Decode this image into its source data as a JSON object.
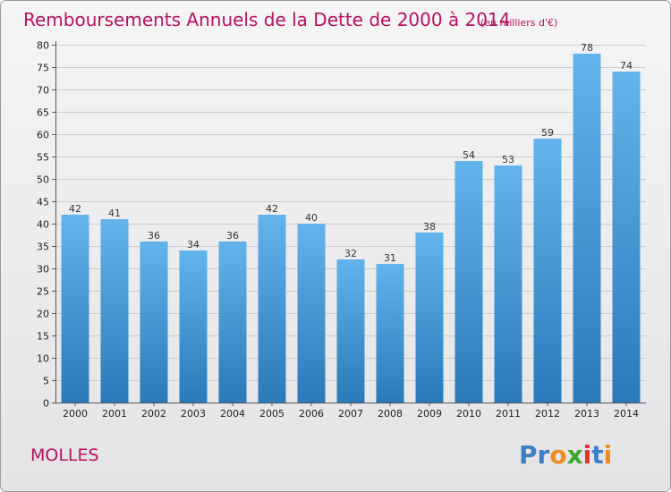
{
  "chart_data": {
    "type": "bar",
    "title": "Remboursements Annuels de la Dette de 2000 à 2014",
    "subtitle": "(en milliers d'€)",
    "categories": [
      "2000",
      "2001",
      "2002",
      "2003",
      "2004",
      "2005",
      "2006",
      "2007",
      "2008",
      "2009",
      "2010",
      "2011",
      "2012",
      "2013",
      "2014"
    ],
    "values": [
      42,
      41,
      36,
      34,
      36,
      42,
      40,
      32,
      31,
      38,
      54,
      53,
      59,
      78,
      74
    ],
    "ylim": [
      0,
      80
    ],
    "yticks": [
      0,
      5,
      10,
      15,
      20,
      25,
      30,
      35,
      40,
      45,
      50,
      55,
      60,
      65,
      70,
      75,
      80
    ],
    "grid": true,
    "xlabel": "",
    "ylabel": ""
  },
  "commune": "MOLLES",
  "brand": {
    "letters": [
      "P",
      "r",
      "o",
      "x",
      "i",
      "t",
      "i"
    ],
    "colors": [
      "#3d7fc4",
      "#3d7fc4",
      "#f08a1c",
      "#3aa632",
      "#e0322f",
      "#3d7fc4",
      "#f08a1c"
    ]
  },
  "colors": {
    "bar_top": "#63b3ec",
    "bar_bottom": "#2a7ab9",
    "accent": "#b5125f",
    "grid": "#cccccc"
  }
}
